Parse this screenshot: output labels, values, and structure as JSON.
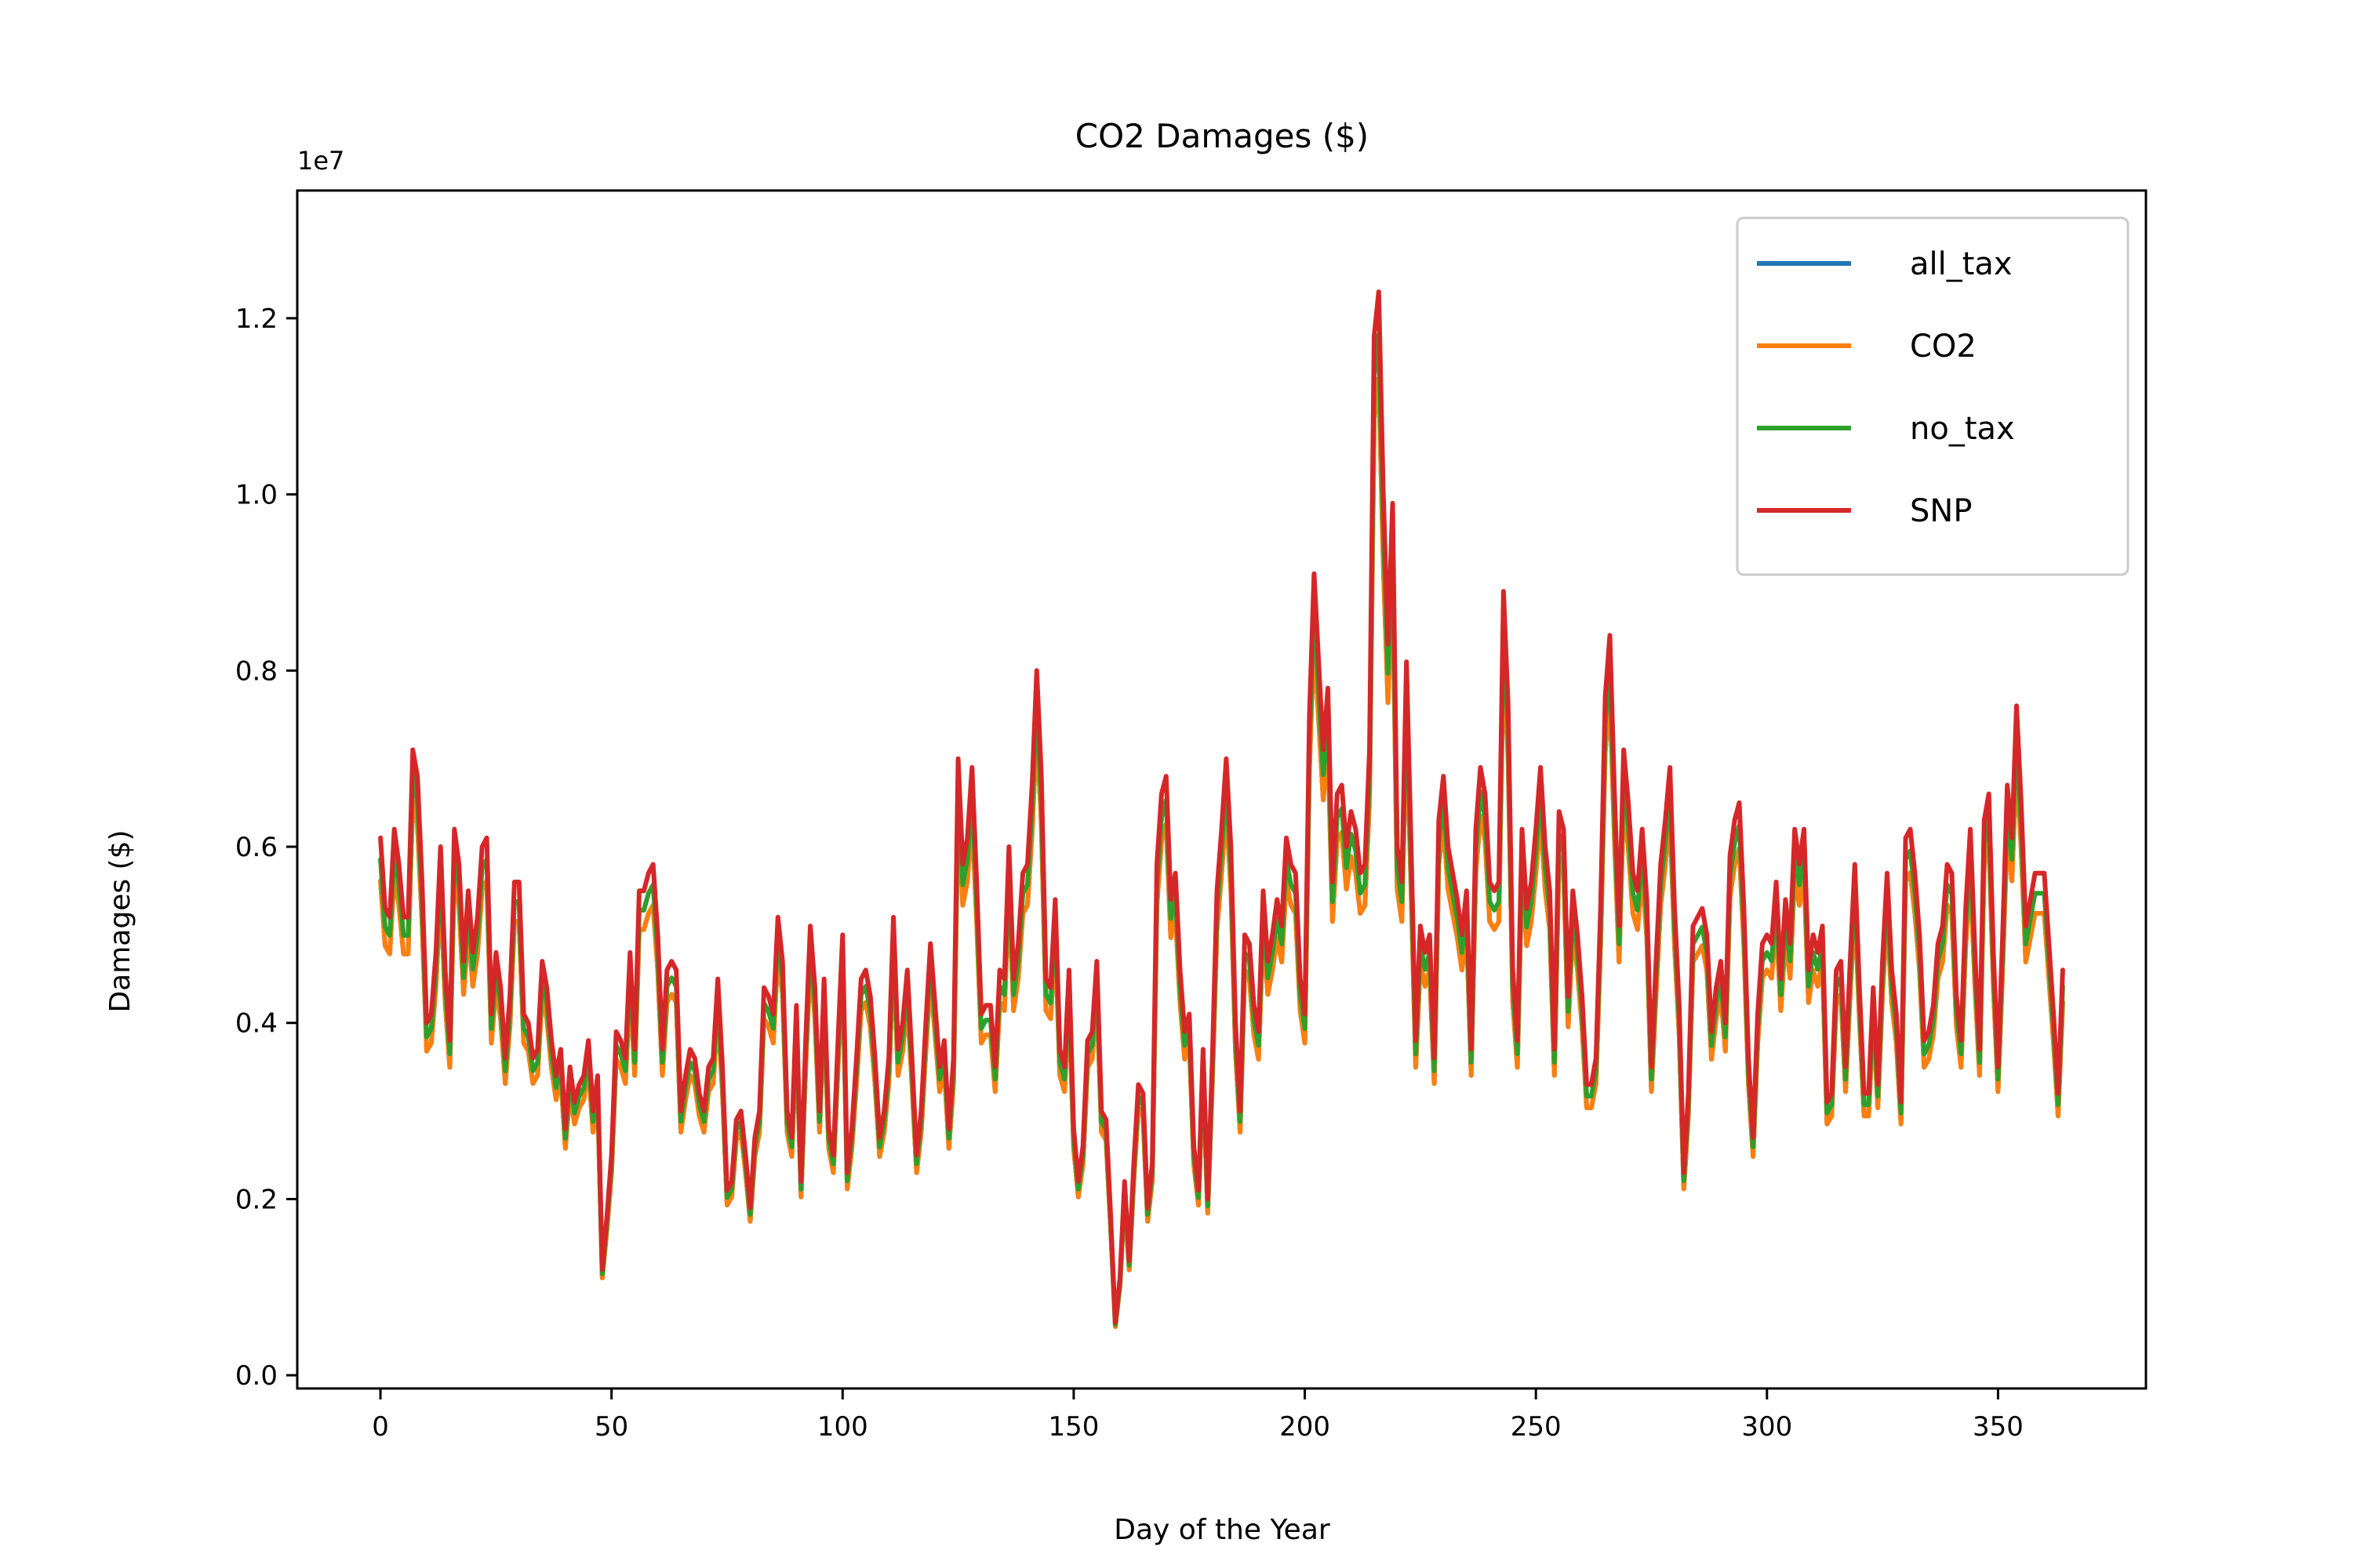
{
  "chart_data": {
    "type": "line",
    "title": "CO2 Damages ($)",
    "xlabel": "Day of the Year",
    "ylabel": "Damages ($)",
    "offset_text": "1e7",
    "xlim": [
      -18,
      382
    ],
    "ylim": [
      -0.015,
      1.345
    ],
    "xticks": [
      0,
      50,
      100,
      150,
      200,
      250,
      300,
      350
    ],
    "xtick_labels": [
      "0",
      "50",
      "100",
      "150",
      "200",
      "250",
      "300",
      "350"
    ],
    "yticks": [
      0.0,
      0.2,
      0.4,
      0.6,
      0.8,
      1.0,
      1.2
    ],
    "ytick_labels": [
      "0.0",
      "0.2",
      "0.4",
      "0.6",
      "0.8",
      "1.0",
      "1.2"
    ],
    "legend_position": "top-right",
    "grid": false,
    "x_step_days": 1,
    "base_series": [
      0.61,
      0.53,
      0.52,
      0.62,
      0.58,
      0.52,
      0.52,
      0.71,
      0.68,
      0.56,
      0.4,
      0.41,
      0.48,
      0.6,
      0.46,
      0.38,
      0.62,
      0.58,
      0.47,
      0.55,
      0.48,
      0.52,
      0.6,
      0.61,
      0.41,
      0.48,
      0.44,
      0.36,
      0.43,
      0.56,
      0.56,
      0.41,
      0.4,
      0.36,
      0.37,
      0.47,
      0.44,
      0.38,
      0.34,
      0.37,
      0.28,
      0.35,
      0.31,
      0.33,
      0.34,
      0.38,
      0.3,
      0.34,
      0.12,
      0.18,
      0.25,
      0.39,
      0.38,
      0.36,
      0.48,
      0.37,
      0.55,
      0.55,
      0.57,
      0.58,
      0.5,
      0.37,
      0.46,
      0.47,
      0.46,
      0.3,
      0.34,
      0.37,
      0.36,
      0.32,
      0.3,
      0.35,
      0.36,
      0.45,
      0.35,
      0.21,
      0.22,
      0.29,
      0.3,
      0.25,
      0.19,
      0.27,
      0.3,
      0.44,
      0.43,
      0.41,
      0.52,
      0.47,
      0.3,
      0.27,
      0.42,
      0.22,
      0.38,
      0.51,
      0.44,
      0.3,
      0.45,
      0.28,
      0.25,
      0.38,
      0.5,
      0.23,
      0.28,
      0.36,
      0.45,
      0.46,
      0.43,
      0.36,
      0.27,
      0.3,
      0.36,
      0.52,
      0.37,
      0.4,
      0.46,
      0.36,
      0.25,
      0.3,
      0.4,
      0.49,
      0.42,
      0.35,
      0.38,
      0.28,
      0.36,
      0.7,
      0.58,
      0.61,
      0.69,
      0.56,
      0.41,
      0.42,
      0.42,
      0.35,
      0.46,
      0.45,
      0.6,
      0.45,
      0.49,
      0.57,
      0.58,
      0.67,
      0.8,
      0.68,
      0.45,
      0.44,
      0.54,
      0.37,
      0.35,
      0.46,
      0.28,
      0.22,
      0.26,
      0.38,
      0.39,
      0.47,
      0.3,
      0.29,
      0.18,
      0.06,
      0.11,
      0.22,
      0.13,
      0.24,
      0.33,
      0.32,
      0.19,
      0.24,
      0.58,
      0.66,
      0.68,
      0.54,
      0.57,
      0.46,
      0.39,
      0.41,
      0.26,
      0.21,
      0.37,
      0.2,
      0.36,
      0.55,
      0.62,
      0.7,
      0.6,
      0.4,
      0.3,
      0.5,
      0.49,
      0.42,
      0.39,
      0.55,
      0.47,
      0.5,
      0.54,
      0.51,
      0.61,
      0.58,
      0.57,
      0.45,
      0.41,
      0.75,
      0.91,
      0.81,
      0.71,
      0.78,
      0.56,
      0.66,
      0.67,
      0.6,
      0.64,
      0.62,
      0.57,
      0.58,
      0.71,
      1.18,
      1.23,
      1.0,
      0.83,
      0.99,
      0.6,
      0.56,
      0.81,
      0.6,
      0.38,
      0.51,
      0.48,
      0.5,
      0.36,
      0.63,
      0.68,
      0.6,
      0.57,
      0.54,
      0.5,
      0.55,
      0.37,
      0.62,
      0.69,
      0.66,
      0.56,
      0.55,
      0.56,
      0.89,
      0.76,
      0.46,
      0.38,
      0.62,
      0.53,
      0.56,
      0.62,
      0.69,
      0.6,
      0.55,
      0.37,
      0.64,
      0.62,
      0.43,
      0.55,
      0.5,
      0.43,
      0.33,
      0.33,
      0.36,
      0.53,
      0.77,
      0.84,
      0.66,
      0.51,
      0.71,
      0.65,
      0.57,
      0.55,
      0.62,
      0.54,
      0.35,
      0.47,
      0.58,
      0.63,
      0.69,
      0.53,
      0.42,
      0.23,
      0.32,
      0.51,
      0.52,
      0.53,
      0.5,
      0.39,
      0.44,
      0.47,
      0.4,
      0.59,
      0.63,
      0.65,
      0.53,
      0.36,
      0.27,
      0.41,
      0.49,
      0.5,
      0.49,
      0.56,
      0.45,
      0.54,
      0.49,
      0.62,
      0.58,
      0.62,
      0.46,
      0.5,
      0.48,
      0.51,
      0.31,
      0.32,
      0.46,
      0.47,
      0.35,
      0.47,
      0.58,
      0.44,
      0.32,
      0.32,
      0.44,
      0.33,
      0.47,
      0.57,
      0.46,
      0.41,
      0.31,
      0.61,
      0.62,
      0.57,
      0.5,
      0.38,
      0.39,
      0.42,
      0.49,
      0.51,
      0.58,
      0.57,
      0.43,
      0.38,
      0.53,
      0.62,
      0.48,
      0.37,
      0.63,
      0.66,
      0.48,
      0.35,
      0.5,
      0.67,
      0.61,
      0.76,
      0.65,
      0.51,
      0.54,
      0.57,
      0.57,
      0.57,
      0.49,
      0.41,
      0.32,
      0.46
    ],
    "series": [
      {
        "name": "all_tax",
        "color": "#1f77b4",
        "factor": 0.92
      },
      {
        "name": "CO2",
        "color": "#ff7f0e",
        "factor": 0.92
      },
      {
        "name": "no_tax",
        "color": "#2ca02c",
        "factor": 0.96
      },
      {
        "name": "SNP",
        "color": "#d62728",
        "factor": 1.0
      }
    ]
  }
}
